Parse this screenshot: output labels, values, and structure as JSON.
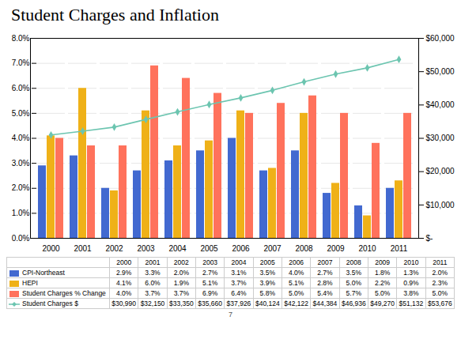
{
  "chart_data": {
    "type": "bar",
    "title": "Student Charges and Inflation",
    "categories": [
      "2000",
      "2001",
      "2002",
      "2003",
      "2004",
      "2005",
      "2006",
      "2007",
      "2008",
      "2009",
      "2010",
      "2011"
    ],
    "series": [
      {
        "name": "CPI-Northeast",
        "type": "bar",
        "values": [
          2.9,
          3.3,
          2.0,
          2.7,
          3.1,
          3.5,
          4.0,
          2.7,
          3.5,
          1.8,
          1.3,
          2.0
        ],
        "value_labels": [
          "2.9%",
          "3.3%",
          "2.0%",
          "2.7%",
          "3.1%",
          "3.5%",
          "4.0%",
          "2.7%",
          "3.5%",
          "1.8%",
          "1.3%",
          "2.0%"
        ]
      },
      {
        "name": "HEPI",
        "type": "bar",
        "values": [
          4.1,
          6.0,
          1.9,
          5.1,
          3.7,
          3.9,
          5.1,
          2.8,
          5.0,
          2.2,
          0.9,
          2.3
        ],
        "value_labels": [
          "4.1%",
          "6.0%",
          "1.9%",
          "5.1%",
          "3.7%",
          "3.9%",
          "5.1%",
          "2.8%",
          "5.0%",
          "2.2%",
          "0.9%",
          "2.3%"
        ]
      },
      {
        "name": "Student Charges % Change",
        "type": "bar",
        "values": [
          4.0,
          3.7,
          3.7,
          6.9,
          6.4,
          5.8,
          5.0,
          5.4,
          5.7,
          5.0,
          3.8,
          5.0
        ],
        "value_labels": [
          "4.0%",
          "3.7%",
          "3.7%",
          "6.9%",
          "6.4%",
          "5.8%",
          "5.0%",
          "5.4%",
          "5.7%",
          "5.0%",
          "3.8%",
          "5.0%"
        ]
      },
      {
        "name": "Student Charges $",
        "type": "line",
        "axis": "y2",
        "marker": "diamond",
        "values": [
          30990,
          32150,
          33350,
          35660,
          37926,
          40124,
          42122,
          44384,
          46936,
          49270,
          51132,
          53676
        ],
        "value_labels": [
          "$30,990",
          "$32,150",
          "$33,350",
          "$35,660",
          "$37,926",
          "$40,124",
          "$42,122",
          "$44,384",
          "$46,936",
          "$49,270",
          "$51,132",
          "$53,676"
        ]
      }
    ],
    "ylim": [
      0.0,
      8.0
    ],
    "yticks": [
      {
        "value": 0.0,
        "label": "0.0%"
      },
      {
        "value": 1.0,
        "label": "1.0%"
      },
      {
        "value": 2.0,
        "label": "2.0%"
      },
      {
        "value": 3.0,
        "label": "3.0%"
      },
      {
        "value": 4.0,
        "label": "4.0%"
      },
      {
        "value": 5.0,
        "label": "5.0%"
      },
      {
        "value": 6.0,
        "label": "6.0%"
      },
      {
        "value": 7.0,
        "label": "7.0%"
      },
      {
        "value": 8.0,
        "label": "8.0%"
      }
    ],
    "y2lim": [
      0,
      60000
    ],
    "y2ticks": [
      {
        "value": 0,
        "label": "$-"
      },
      {
        "value": 10000,
        "label": "$10,000"
      },
      {
        "value": 20000,
        "label": "$20,000"
      },
      {
        "value": 30000,
        "label": "$30,000"
      },
      {
        "value": 40000,
        "label": "$40,000"
      },
      {
        "value": 50000,
        "label": "$50,000"
      },
      {
        "value": 60000,
        "label": "$60,000"
      }
    ],
    "grid": true,
    "legend": "bottom",
    "data_labels": true,
    "annotations": [
      "7"
    ]
  }
}
